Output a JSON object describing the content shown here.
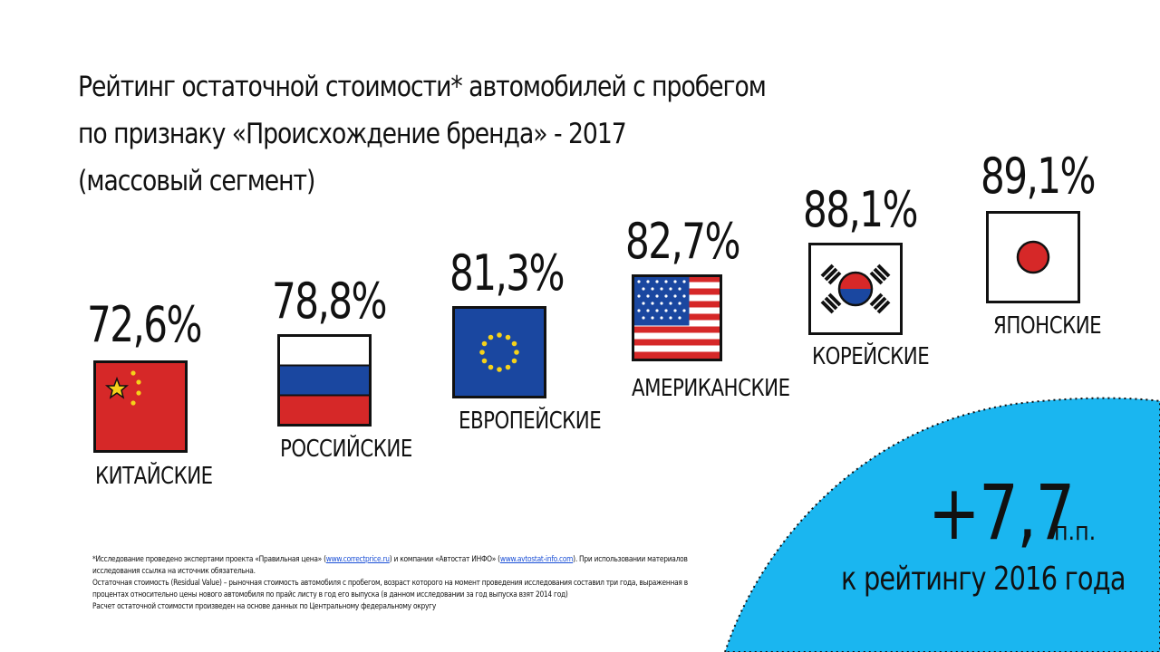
{
  "title": {
    "line1": "Рейтинг остаточной стоимости* автомобилей с пробегом",
    "line2": "по признаку «Происхождение бренда» - 2017",
    "line3": "(массовый сегмент)"
  },
  "chart_data": {
    "type": "bar",
    "categories": [
      "КИТАЙСКИЕ",
      "РОССИЙСКИЕ",
      "ЕВРОПЕЙСКИЕ",
      "АМЕРИКАНСКИЕ",
      "КОРЕЙСКИЕ",
      "ЯПОНСКИЕ"
    ],
    "values": [
      72.6,
      78.8,
      81.3,
      82.7,
      88.1,
      89.1
    ],
    "value_labels": [
      "72,6%",
      "78,8%",
      "81,3%",
      "82,7%",
      "88,1%",
      "89,1%"
    ],
    "flags": [
      "china-flag-icon",
      "russia-flag-icon",
      "eu-flag-icon",
      "usa-flag-icon",
      "korea-flag-icon",
      "japan-flag-icon"
    ]
  },
  "delta": {
    "value": "+7,7",
    "unit": "п.п.",
    "text": "к рейтингу 2016 года"
  },
  "footnote": {
    "line1_a": "*Исследование проведено экспертами проекта «Правильная цена» (",
    "link1": "www.correctprice.ru",
    "line1_b": ") и компании «Автостат ИНФО» (",
    "link2": "www.avtostat-info.com",
    "line1_c": "). При использовании материалов",
    "line2": "исследования ссылка на источник обязательна.",
    "line3": "Остаточная стоимость (Residual Value) – рыночная стоимость автомобиля с пробегом, возраст которого на момент проведения исследования составил три года, выраженная в",
    "line4": "процентах относительно цены нового автомобиля по прайс листу в год его выпуска (в данном исследовании за год выпуска взят 2014 год)",
    "line5": "Расчет остаточной стоимости произведен на основе данных по Центральному федеральному округу"
  },
  "colors": {
    "accent": "#1ab6f0",
    "red": "#d62828",
    "blue": "#1a47a0",
    "yellow": "#f5d21a"
  }
}
